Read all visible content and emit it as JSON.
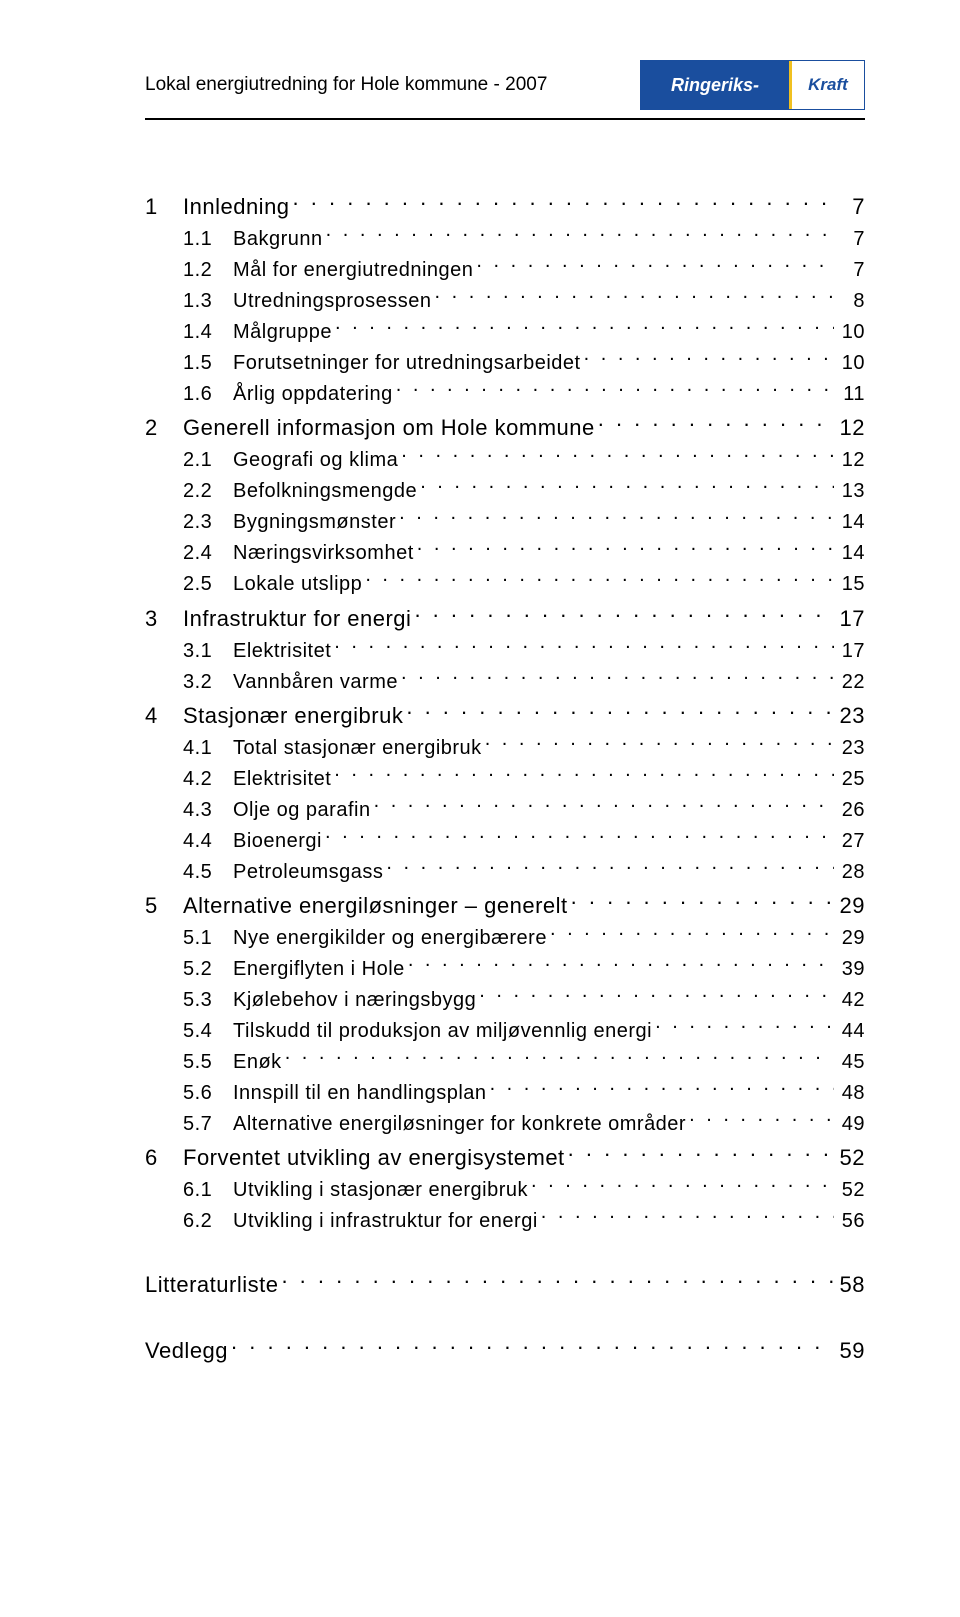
{
  "header": {
    "title": "Lokal energiutredning for Hole kommune - 2007",
    "logo_left": "Ringeriks-",
    "logo_right": "Kraft"
  },
  "toc": [
    {
      "level": 1,
      "num": "1",
      "label": "Innledning",
      "page": "7"
    },
    {
      "level": 2,
      "num": "1.1",
      "label": "Bakgrunn",
      "page": "7"
    },
    {
      "level": 2,
      "num": "1.2",
      "label": "Mål for energiutredningen",
      "page": "7"
    },
    {
      "level": 2,
      "num": "1.3",
      "label": "Utredningsprosessen",
      "page": "8"
    },
    {
      "level": 2,
      "num": "1.4",
      "label": "Målgruppe",
      "page": "10"
    },
    {
      "level": 2,
      "num": "1.5",
      "label": "Forutsetninger for utredningsarbeidet",
      "page": "10"
    },
    {
      "level": 2,
      "num": "1.6",
      "label": "Årlig oppdatering",
      "page": "11"
    },
    {
      "level": 1,
      "num": "2",
      "label": "Generell informasjon om Hole kommune",
      "page": "12"
    },
    {
      "level": 2,
      "num": "2.1",
      "label": "Geografi og klima",
      "page": "12"
    },
    {
      "level": 2,
      "num": "2.2",
      "label": "Befolkningsmengde",
      "page": "13"
    },
    {
      "level": 2,
      "num": "2.3",
      "label": "Bygningsmønster",
      "page": "14"
    },
    {
      "level": 2,
      "num": "2.4",
      "label": "Næringsvirksomhet",
      "page": "14"
    },
    {
      "level": 2,
      "num": "2.5",
      "label": "Lokale utslipp",
      "page": "15"
    },
    {
      "level": 1,
      "num": "3",
      "label": "Infrastruktur for energi",
      "page": "17"
    },
    {
      "level": 2,
      "num": "3.1",
      "label": "Elektrisitet",
      "page": "17"
    },
    {
      "level": 2,
      "num": "3.2",
      "label": "Vannbåren varme",
      "page": "22"
    },
    {
      "level": 1,
      "num": "4",
      "label": "Stasjonær energibruk",
      "page": "23"
    },
    {
      "level": 2,
      "num": "4.1",
      "label": "Total stasjonær energibruk",
      "page": "23"
    },
    {
      "level": 2,
      "num": "4.2",
      "label": "Elektrisitet",
      "page": "25"
    },
    {
      "level": 2,
      "num": "4.3",
      "label": "Olje og parafin",
      "page": "26"
    },
    {
      "level": 2,
      "num": "4.4",
      "label": "Bioenergi",
      "page": "27"
    },
    {
      "level": 2,
      "num": "4.5",
      "label": "Petroleumsgass",
      "page": "28"
    },
    {
      "level": 1,
      "num": "5",
      "label": "Alternative energiløsninger – generelt",
      "page": "29"
    },
    {
      "level": 2,
      "num": "5.1",
      "label": "Nye energikilder og energibærere",
      "page": "29"
    },
    {
      "level": 2,
      "num": "5.2",
      "label": "Energiflyten i Hole",
      "page": "39"
    },
    {
      "level": 2,
      "num": "5.3",
      "label": "Kjølebehov i næringsbygg",
      "page": "42"
    },
    {
      "level": 2,
      "num": "5.4",
      "label": "Tilskudd til produksjon av miljøvennlig energi",
      "page": "44"
    },
    {
      "level": 2,
      "num": "5.5",
      "label": "Enøk",
      "page": "45"
    },
    {
      "level": 2,
      "num": "5.6",
      "label": "Innspill til en handlingsplan",
      "page": "48"
    },
    {
      "level": 2,
      "num": "5.7",
      "label": "Alternative energiløsninger for konkrete områder",
      "page": "49"
    },
    {
      "level": 1,
      "num": "6",
      "label": "Forventet utvikling av energisystemet",
      "page": "52"
    },
    {
      "level": 2,
      "num": "6.1",
      "label": "Utvikling i stasjonær energibruk",
      "page": "52"
    },
    {
      "level": 2,
      "num": "6.2",
      "label": "Utvikling i infrastruktur for energi",
      "page": "56"
    }
  ],
  "toc_extra": [
    {
      "label": "Litteraturliste",
      "page": "58"
    },
    {
      "label": "Vedlegg",
      "page": "59"
    }
  ],
  "colors": {
    "text": "#000000",
    "logo_bg": "#1a4e9e",
    "logo_accent": "#f0c020",
    "page_bg": "#ffffff"
  }
}
